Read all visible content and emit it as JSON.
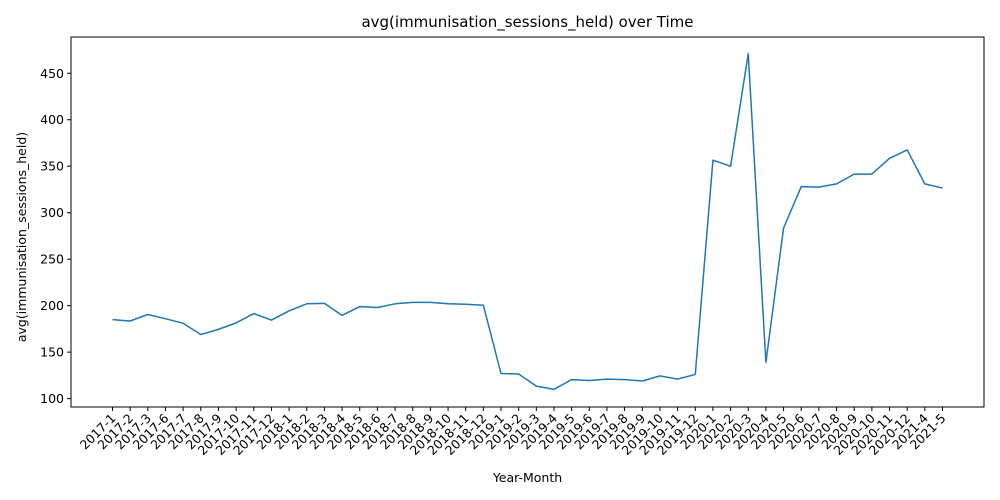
{
  "chart_data": {
    "type": "line",
    "title": "avg(immunisation_sessions_held) over Time",
    "xlabel": "Year-Month",
    "ylabel": "avg(immunisation_sessions_held)",
    "grid": false,
    "ylim": [
      91,
      489
    ],
    "yticks": [
      100,
      150,
      200,
      250,
      300,
      350,
      400,
      450
    ],
    "color": "#1f77b4",
    "series": [
      {
        "x": [
          "2017-1",
          "2017-2",
          "2017-3",
          "2017-6",
          "2017-7",
          "2017-8",
          "2017-9",
          "2017-10",
          "2017-11",
          "2017-12",
          "2018-1",
          "2018-2",
          "2018-3",
          "2018-4",
          "2018-5",
          "2018-6",
          "2018-7",
          "2018-8",
          "2018-9",
          "2018-10",
          "2018-11",
          "2018-12",
          "2019-1",
          "2019-2",
          "2019-3",
          "2019-4",
          "2019-5",
          "2019-6",
          "2019-7",
          "2019-8",
          "2019-9",
          "2019-10",
          "2019-11",
          "2019-12",
          "2020-1",
          "2020-2",
          "2020-3",
          "2020-4",
          "2020-5",
          "2020-6",
          "2020-7",
          "2020-8",
          "2020-9",
          "2020-10",
          "2020-11",
          "2020-12",
          "2021-4",
          "2021-5"
        ],
        "y": [
          185,
          183.5,
          190.5,
          186,
          181,
          169,
          174.5,
          181.5,
          191.5,
          184.5,
          194.5,
          202,
          202.5,
          189.5,
          199,
          198,
          202,
          203.5,
          203.5,
          202,
          201.5,
          200.5,
          127,
          126.5,
          113.5,
          110,
          120.5,
          119.5,
          121,
          120.5,
          119,
          124.5,
          121,
          126,
          356.5,
          350,
          471,
          139,
          283.5,
          328,
          327.5,
          331,
          341.5,
          341.5,
          358.5,
          367.5,
          331,
          326.5
        ]
      }
    ]
  }
}
